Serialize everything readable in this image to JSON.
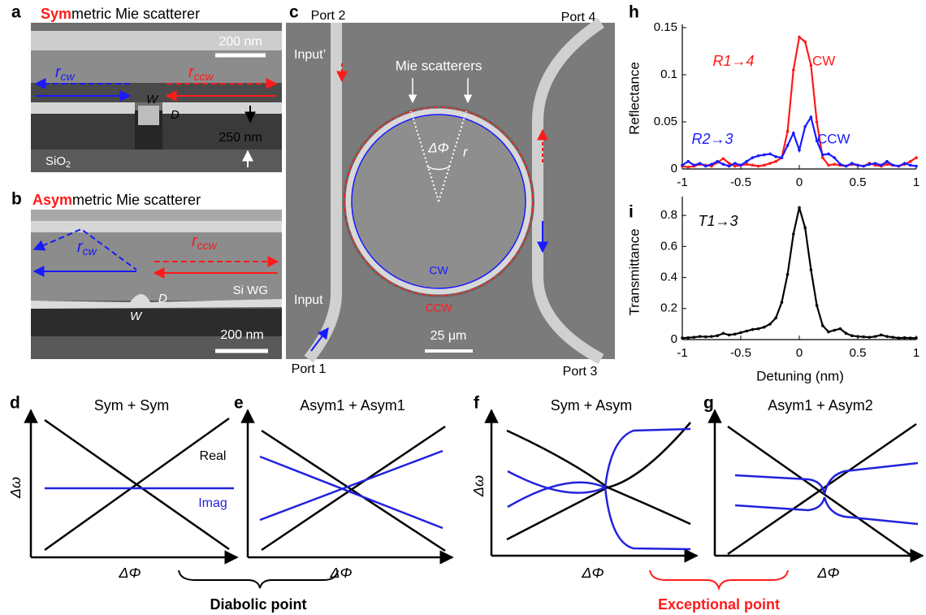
{
  "panels": {
    "a": {
      "letter": "a",
      "title_highlight": "Sym",
      "title_rest": "metric Mie scatterer",
      "scale": "200 nm",
      "r_cw": {
        "main": "r",
        "sub": "cw"
      },
      "r_ccw": {
        "main": "r",
        "sub": "ccw"
      },
      "w": "W",
      "d": "D",
      "height": "250 nm",
      "substrate": {
        "main": "SiO",
        "sub": "2"
      }
    },
    "b": {
      "letter": "b",
      "title_highlight": "Asym",
      "title_rest": "metric Mie scatterer",
      "scale": "200 nm",
      "r_cw": {
        "main": "r",
        "sub": "cw"
      },
      "r_ccw": {
        "main": "r",
        "sub": "ccw"
      },
      "w": "W",
      "d": "D",
      "waveguide": "Si WG"
    },
    "c": {
      "letter": "c",
      "port2": "Port 2",
      "port4": "Port 4",
      "input_prime": "Input’",
      "scatterers": "Mie scatterers",
      "dphi": "ΔΦ",
      "r": "r",
      "cw": "CW",
      "ccw": "CCW",
      "input": "Input",
      "scale": "25 μm",
      "port1": "Port 1",
      "port3": "Port 3"
    },
    "d": {
      "letter": "d",
      "title": "Sym + Sym",
      "real": "Real",
      "imag": "Imag",
      "ylabel": "Δω",
      "xlabel": "ΔΦ"
    },
    "e": {
      "letter": "e",
      "title": "Asym1 + Asym1",
      "xlabel": "ΔΦ"
    },
    "f": {
      "letter": "f",
      "title": "Sym + Asym",
      "ylabel": "Δω",
      "xlabel": "ΔΦ"
    },
    "g": {
      "letter": "g",
      "title": "Asym1 + Asym2",
      "xlabel": "ΔΦ"
    },
    "diabolic": "Diabolic point",
    "exceptional": "Exceptional point"
  },
  "chart_data": [
    {
      "type": "line",
      "letter": "h",
      "ylabel": "Reflectance",
      "x": [
        -1,
        -0.95,
        -0.9,
        -0.85,
        -0.8,
        -0.75,
        -0.7,
        -0.65,
        -0.6,
        -0.55,
        -0.5,
        -0.45,
        -0.4,
        -0.35,
        -0.3,
        -0.25,
        -0.2,
        -0.15,
        -0.1,
        -0.05,
        0,
        0.05,
        0.1,
        0.15,
        0.2,
        0.25,
        0.3,
        0.35,
        0.4,
        0.45,
        0.5,
        0.55,
        0.6,
        0.65,
        0.7,
        0.75,
        0.8,
        0.85,
        0.9,
        0.95,
        1
      ],
      "xlim": [
        -1,
        1
      ],
      "xticks": [
        -1,
        -0.5,
        0,
        0.5,
        1
      ],
      "ylim": [
        0,
        0.15
      ],
      "yticks": [
        0,
        0.05,
        0.1,
        0.15
      ],
      "annotations": [
        "CW",
        "CCW"
      ],
      "series": [
        {
          "name": "R1→4",
          "color": "#ff1a1a",
          "values": [
            0.003,
            0.002,
            0.003,
            0.005,
            0.004,
            0.003,
            0.007,
            0.011,
            0.006,
            0.003,
            0.004,
            0.005,
            0.004,
            0.003,
            0.004,
            0.006,
            0.008,
            0.012,
            0.04,
            0.105,
            0.14,
            0.135,
            0.11,
            0.05,
            0.012,
            0.004,
            0.005,
            0.004,
            0.003,
            0.005,
            0.004,
            0.003,
            0.006,
            0.004,
            0.003,
            0.005,
            0.004,
            0.003,
            0.005,
            0.008,
            0.012
          ]
        },
        {
          "name": "R2→3",
          "color": "#1a1aff",
          "values": [
            0.004,
            0.008,
            0.004,
            0.006,
            0.003,
            0.005,
            0.008,
            0.005,
            0.003,
            0.006,
            0.004,
            0.008,
            0.012,
            0.014,
            0.015,
            0.016,
            0.013,
            0.012,
            0.025,
            0.038,
            0.02,
            0.045,
            0.055,
            0.03,
            0.015,
            0.016,
            0.012,
            0.005,
            0.003,
            0.006,
            0.004,
            0.003,
            0.005,
            0.006,
            0.004,
            0.008,
            0.004,
            0.003,
            0.006,
            0.004,
            0.003
          ]
        }
      ]
    },
    {
      "type": "line",
      "letter": "i",
      "ylabel": "Transmittance",
      "xlabel": "Detuning (nm)",
      "x": [
        -1,
        -0.95,
        -0.9,
        -0.85,
        -0.8,
        -0.75,
        -0.7,
        -0.65,
        -0.6,
        -0.55,
        -0.5,
        -0.45,
        -0.4,
        -0.35,
        -0.3,
        -0.25,
        -0.2,
        -0.15,
        -0.1,
        -0.05,
        0,
        0.05,
        0.1,
        0.15,
        0.2,
        0.25,
        0.3,
        0.35,
        0.4,
        0.45,
        0.5,
        0.55,
        0.6,
        0.65,
        0.7,
        0.75,
        0.8,
        0.85,
        0.9,
        0.95,
        1
      ],
      "xlim": [
        -1,
        1
      ],
      "xticks": [
        -1,
        -0.5,
        0,
        0.5,
        1
      ],
      "ylim": [
        0,
        0.9
      ],
      "yticks": [
        0,
        0.2,
        0.4,
        0.6,
        0.8
      ],
      "series": [
        {
          "name": "T1→3",
          "color": "#000000",
          "values": [
            0.01,
            0.012,
            0.015,
            0.02,
            0.018,
            0.02,
            0.025,
            0.04,
            0.03,
            0.035,
            0.045,
            0.055,
            0.065,
            0.07,
            0.08,
            0.1,
            0.14,
            0.24,
            0.42,
            0.68,
            0.85,
            0.72,
            0.45,
            0.22,
            0.09,
            0.05,
            0.06,
            0.07,
            0.04,
            0.025,
            0.02,
            0.018,
            0.015,
            0.02,
            0.03,
            0.02,
            0.015,
            0.01,
            0.012,
            0.01,
            0.01
          ]
        }
      ]
    }
  ]
}
